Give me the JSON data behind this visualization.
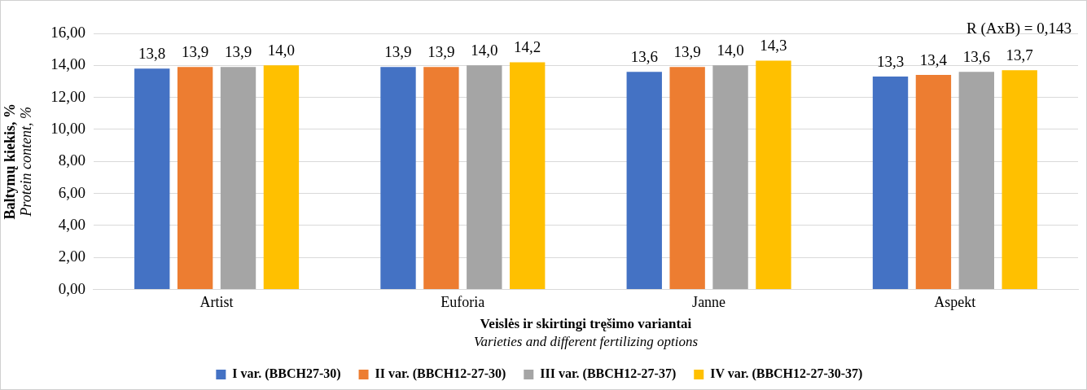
{
  "chart_data": {
    "type": "bar",
    "ylabel": "Baltymų kiekis, %\nProtein content, %",
    "xlabel": "Veislės ir skirtingi tręšimo variantai\nVarieties and different fertilizing options",
    "categories": [
      "Artist",
      "Euforia",
      "Janne",
      "Aspekt"
    ],
    "series": [
      {
        "name": "I var. (BBCH27-30)",
        "color": "#4472c4",
        "values": [
          13.8,
          13.9,
          13.6,
          13.3
        ],
        "value_labels": [
          "13,8",
          "13,9",
          "13,6",
          "13,3"
        ]
      },
      {
        "name": "II var. (BBCH12-27-30)",
        "color": "#ed7d31",
        "values": [
          13.9,
          13.9,
          13.9,
          13.4
        ],
        "value_labels": [
          "13,9",
          "13,9",
          "13,9",
          "13,4"
        ]
      },
      {
        "name": "III var. (BBCH12-27-37)",
        "color": "#a5a5a5",
        "values": [
          13.9,
          14.0,
          14.0,
          13.6
        ],
        "value_labels": [
          "13,9",
          "14,0",
          "14,0",
          "13,6"
        ]
      },
      {
        "name": "IV var. (BBCH12-27-30-37)",
        "color": "#ffc000",
        "values": [
          14.0,
          14.2,
          14.3,
          13.7
        ],
        "value_labels": [
          "14,0",
          "14,2",
          "14,3",
          "13,7"
        ]
      }
    ],
    "ylim": [
      0,
      16
    ],
    "yticks": [
      {
        "value": 0,
        "label": "0,00"
      },
      {
        "value": 2,
        "label": "2,00"
      },
      {
        "value": 4,
        "label": "4,00"
      },
      {
        "value": 6,
        "label": "6,00"
      },
      {
        "value": 8,
        "label": "8,00"
      },
      {
        "value": 10,
        "label": "10,00"
      },
      {
        "value": 12,
        "label": "12,00"
      },
      {
        "value": 14,
        "label": "14,00"
      },
      {
        "value": 16,
        "label": "16,00"
      }
    ],
    "grid": "y",
    "legend": "bottom",
    "annotations": [
      "R (AxB) = 0,143"
    ]
  }
}
